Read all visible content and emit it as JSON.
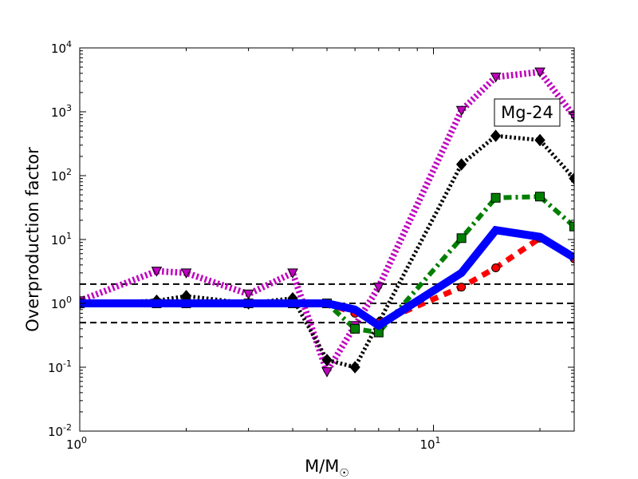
{
  "chart_data": {
    "type": "line",
    "xscale": "log",
    "yscale": "log",
    "xlim": [
      1,
      25
    ],
    "ylim": [
      0.01,
      10000
    ],
    "xlabel": "M/M",
    "xlabel_sub": "☉",
    "ylabel": "Overproduction factor",
    "annotation": "Mg-24",
    "x_ticks": [
      {
        "value": 1,
        "base": "10",
        "exp": "0"
      },
      {
        "value": 10,
        "base": "10",
        "exp": "1"
      }
    ],
    "y_ticks": [
      {
        "value": 0.01,
        "base": "10",
        "exp": "-2"
      },
      {
        "value": 0.1,
        "base": "10",
        "exp": "-1"
      },
      {
        "value": 1,
        "base": "10",
        "exp": "0"
      },
      {
        "value": 10,
        "base": "10",
        "exp": "1"
      },
      {
        "value": 100,
        "base": "10",
        "exp": "2"
      },
      {
        "value": 1000,
        "base": "10",
        "exp": "3"
      },
      {
        "value": 10000,
        "base": "10",
        "exp": "4"
      }
    ],
    "reference_lines": [
      {
        "value": 2,
        "style": "dashed",
        "color": "#000000"
      },
      {
        "value": 1,
        "style": "dashed",
        "color": "#000000"
      },
      {
        "value": 0.5,
        "style": "dashed",
        "color": "#000000"
      }
    ],
    "series": [
      {
        "name": "magenta dotted triangles",
        "color": "#bf00bf",
        "line_style": "dotted",
        "marker": "triangle-down",
        "x": [
          1,
          1.65,
          2,
          3,
          4,
          5,
          6,
          7,
          12,
          15,
          20,
          25
        ],
        "y": [
          1.1,
          3.2,
          3.0,
          1.4,
          3.0,
          0.085,
          0.45,
          1.8,
          1050,
          3500,
          4200,
          850
        ]
      },
      {
        "name": "black dotted diamonds",
        "color": "#000000",
        "line_style": "dotted",
        "marker": "diamond",
        "x": [
          1,
          1.65,
          2,
          3,
          4,
          5,
          6,
          7,
          12,
          15,
          20,
          25
        ],
        "y": [
          1.0,
          1.1,
          1.3,
          1.0,
          1.2,
          0.13,
          0.1,
          0.5,
          150,
          420,
          360,
          90
        ]
      },
      {
        "name": "green dash-dot squares",
        "color": "#007f00",
        "line_style": "dashdot",
        "marker": "square",
        "x": [
          1,
          1.65,
          2,
          3,
          4,
          5,
          6,
          7,
          12,
          15,
          20,
          25
        ],
        "y": [
          1.0,
          1.0,
          1.0,
          1.0,
          1.0,
          1.0,
          0.4,
          0.35,
          10.5,
          45,
          47,
          16
        ]
      },
      {
        "name": "red dashed circles",
        "color": "#ff0000",
        "line_style": "dashed",
        "marker": "circle",
        "x": [
          1,
          1.65,
          2,
          3,
          4,
          5,
          6,
          7,
          12,
          15,
          20,
          25
        ],
        "y": [
          1.0,
          1.0,
          1.0,
          1.0,
          1.0,
          1.0,
          0.7,
          0.5,
          1.8,
          3.6,
          10.5,
          5.0
        ]
      },
      {
        "name": "blue solid",
        "color": "#0000ff",
        "line_style": "solid",
        "marker": "none",
        "x": [
          1,
          1.65,
          2,
          3,
          4,
          5,
          6,
          7,
          12,
          15,
          20,
          25
        ],
        "y": [
          1.0,
          1.0,
          1.0,
          1.0,
          1.0,
          1.0,
          0.8,
          0.45,
          3.0,
          14,
          11,
          5.2
        ]
      }
    ]
  }
}
